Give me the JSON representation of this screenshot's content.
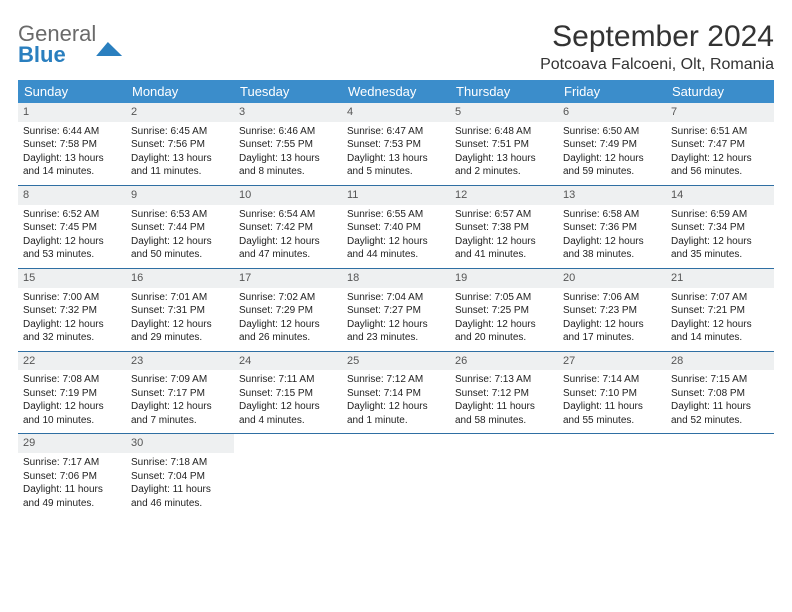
{
  "logo": {
    "line1": "General",
    "line2": "Blue"
  },
  "title": "September 2024",
  "location": "Potcoava Falcoeni, Olt, Romania",
  "colors": {
    "header_bg": "#3b8dcb",
    "header_text": "#ffffff",
    "daynum_bg": "#eef0f1",
    "sep_border": "#2f6fa3",
    "logo_blue": "#2a7fbf",
    "body_text": "#333333"
  },
  "weekdays": [
    "Sunday",
    "Monday",
    "Tuesday",
    "Wednesday",
    "Thursday",
    "Friday",
    "Saturday"
  ],
  "days": [
    {
      "n": "1",
      "sr": "6:44 AM",
      "ss": "7:58 PM",
      "dl": "13 hours and 14 minutes."
    },
    {
      "n": "2",
      "sr": "6:45 AM",
      "ss": "7:56 PM",
      "dl": "13 hours and 11 minutes."
    },
    {
      "n": "3",
      "sr": "6:46 AM",
      "ss": "7:55 PM",
      "dl": "13 hours and 8 minutes."
    },
    {
      "n": "4",
      "sr": "6:47 AM",
      "ss": "7:53 PM",
      "dl": "13 hours and 5 minutes."
    },
    {
      "n": "5",
      "sr": "6:48 AM",
      "ss": "7:51 PM",
      "dl": "13 hours and 2 minutes."
    },
    {
      "n": "6",
      "sr": "6:50 AM",
      "ss": "7:49 PM",
      "dl": "12 hours and 59 minutes."
    },
    {
      "n": "7",
      "sr": "6:51 AM",
      "ss": "7:47 PM",
      "dl": "12 hours and 56 minutes."
    },
    {
      "n": "8",
      "sr": "6:52 AM",
      "ss": "7:45 PM",
      "dl": "12 hours and 53 minutes."
    },
    {
      "n": "9",
      "sr": "6:53 AM",
      "ss": "7:44 PM",
      "dl": "12 hours and 50 minutes."
    },
    {
      "n": "10",
      "sr": "6:54 AM",
      "ss": "7:42 PM",
      "dl": "12 hours and 47 minutes."
    },
    {
      "n": "11",
      "sr": "6:55 AM",
      "ss": "7:40 PM",
      "dl": "12 hours and 44 minutes."
    },
    {
      "n": "12",
      "sr": "6:57 AM",
      "ss": "7:38 PM",
      "dl": "12 hours and 41 minutes."
    },
    {
      "n": "13",
      "sr": "6:58 AM",
      "ss": "7:36 PM",
      "dl": "12 hours and 38 minutes."
    },
    {
      "n": "14",
      "sr": "6:59 AM",
      "ss": "7:34 PM",
      "dl": "12 hours and 35 minutes."
    },
    {
      "n": "15",
      "sr": "7:00 AM",
      "ss": "7:32 PM",
      "dl": "12 hours and 32 minutes."
    },
    {
      "n": "16",
      "sr": "7:01 AM",
      "ss": "7:31 PM",
      "dl": "12 hours and 29 minutes."
    },
    {
      "n": "17",
      "sr": "7:02 AM",
      "ss": "7:29 PM",
      "dl": "12 hours and 26 minutes."
    },
    {
      "n": "18",
      "sr": "7:04 AM",
      "ss": "7:27 PM",
      "dl": "12 hours and 23 minutes."
    },
    {
      "n": "19",
      "sr": "7:05 AM",
      "ss": "7:25 PM",
      "dl": "12 hours and 20 minutes."
    },
    {
      "n": "20",
      "sr": "7:06 AM",
      "ss": "7:23 PM",
      "dl": "12 hours and 17 minutes."
    },
    {
      "n": "21",
      "sr": "7:07 AM",
      "ss": "7:21 PM",
      "dl": "12 hours and 14 minutes."
    },
    {
      "n": "22",
      "sr": "7:08 AM",
      "ss": "7:19 PM",
      "dl": "12 hours and 10 minutes."
    },
    {
      "n": "23",
      "sr": "7:09 AM",
      "ss": "7:17 PM",
      "dl": "12 hours and 7 minutes."
    },
    {
      "n": "24",
      "sr": "7:11 AM",
      "ss": "7:15 PM",
      "dl": "12 hours and 4 minutes."
    },
    {
      "n": "25",
      "sr": "7:12 AM",
      "ss": "7:14 PM",
      "dl": "12 hours and 1 minute."
    },
    {
      "n": "26",
      "sr": "7:13 AM",
      "ss": "7:12 PM",
      "dl": "11 hours and 58 minutes."
    },
    {
      "n": "27",
      "sr": "7:14 AM",
      "ss": "7:10 PM",
      "dl": "11 hours and 55 minutes."
    },
    {
      "n": "28",
      "sr": "7:15 AM",
      "ss": "7:08 PM",
      "dl": "11 hours and 52 minutes."
    },
    {
      "n": "29",
      "sr": "7:17 AM",
      "ss": "7:06 PM",
      "dl": "11 hours and 49 minutes."
    },
    {
      "n": "30",
      "sr": "7:18 AM",
      "ss": "7:04 PM",
      "dl": "11 hours and 46 minutes."
    }
  ],
  "labels": {
    "sunrise": "Sunrise:",
    "sunset": "Sunset:",
    "daylight": "Daylight:"
  },
  "layout": {
    "start_weekday": 0,
    "total_cells": 35
  }
}
